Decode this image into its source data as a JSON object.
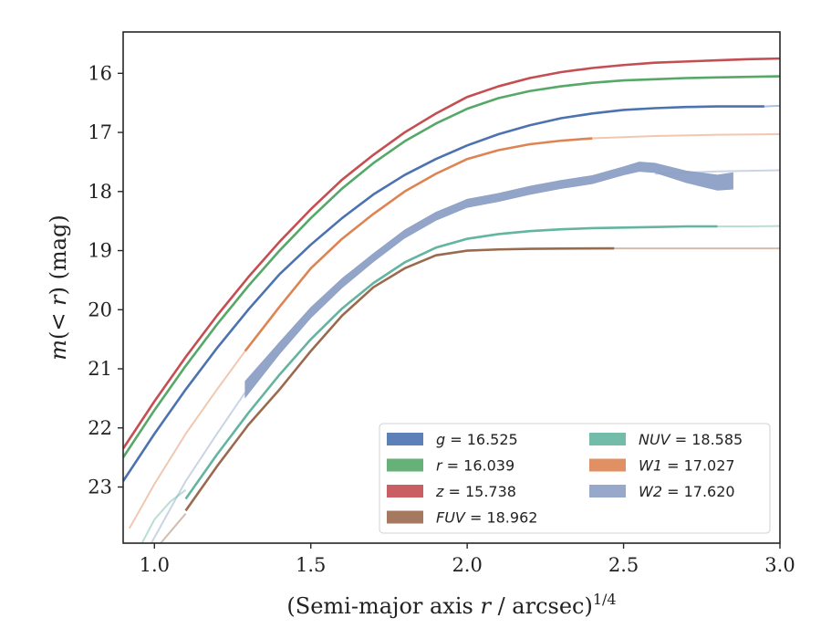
{
  "chart_data": {
    "type": "line",
    "xlabel": "(Semi-major axis r / arcsec)",
    "xlabel_italic_part": "r",
    "xlabel_exponent": "1/4",
    "ylabel": "m(<r) (mag)",
    "xlim": [
      0.9,
      3.0
    ],
    "ylim": [
      23.95,
      15.3
    ],
    "y_inverted": true,
    "grid": false,
    "legend_position": "lower-right",
    "x_ticks": [
      1.0,
      1.5,
      2.0,
      2.5,
      3.0
    ],
    "x_tick_labels": [
      "1.0",
      "1.5",
      "2.0",
      "2.5",
      "3.0"
    ],
    "y_ticks": [
      16,
      17,
      18,
      19,
      20,
      21,
      22,
      23
    ],
    "y_tick_labels": [
      "16",
      "17",
      "18",
      "19",
      "20",
      "21",
      "22",
      "23"
    ],
    "series": [
      {
        "name": "g = 16.525",
        "band": "g",
        "color": "#4c72b0",
        "style": "line",
        "x": [
          0.9,
          1.0,
          1.1,
          1.2,
          1.3,
          1.4,
          1.5,
          1.6,
          1.7,
          1.8,
          1.9,
          2.0,
          2.1,
          2.2,
          2.3,
          2.4,
          2.5,
          2.6,
          2.7,
          2.8,
          2.95
        ],
        "y": [
          22.9,
          22.1,
          21.35,
          20.65,
          20.0,
          19.4,
          18.9,
          18.45,
          18.05,
          17.72,
          17.45,
          17.22,
          17.03,
          16.88,
          16.76,
          16.68,
          16.62,
          16.59,
          16.57,
          16.56,
          16.56
        ]
      },
      {
        "name": "g-extension",
        "color": "#4c72b0",
        "style": "faint",
        "x": [
          2.95,
          3.0
        ],
        "y": [
          16.56,
          16.55
        ]
      },
      {
        "name": "r = 16.039",
        "band": "r",
        "color": "#55a868",
        "style": "line",
        "x": [
          0.9,
          1.0,
          1.1,
          1.2,
          1.3,
          1.4,
          1.5,
          1.6,
          1.7,
          1.8,
          1.9,
          2.0,
          2.1,
          2.2,
          2.3,
          2.4,
          2.5,
          2.6,
          2.7,
          2.8,
          2.9,
          3.0
        ],
        "y": [
          22.5,
          21.7,
          20.95,
          20.25,
          19.6,
          19.0,
          18.45,
          17.95,
          17.52,
          17.15,
          16.85,
          16.6,
          16.42,
          16.3,
          16.22,
          16.16,
          16.12,
          16.1,
          16.08,
          16.07,
          16.06,
          16.05
        ]
      },
      {
        "name": "z = 15.738",
        "band": "z",
        "color": "#c44e52",
        "style": "line",
        "x": [
          0.9,
          1.0,
          1.1,
          1.2,
          1.3,
          1.4,
          1.5,
          1.6,
          1.7,
          1.8,
          1.9,
          2.0,
          2.1,
          2.2,
          2.3,
          2.4,
          2.5,
          2.6,
          2.7,
          2.8,
          2.9,
          3.0
        ],
        "y": [
          22.35,
          21.55,
          20.8,
          20.1,
          19.45,
          18.85,
          18.3,
          17.8,
          17.38,
          17.0,
          16.68,
          16.4,
          16.22,
          16.08,
          15.98,
          15.91,
          15.86,
          15.82,
          15.8,
          15.78,
          15.76,
          15.75
        ]
      },
      {
        "name": "W1-faint-inner",
        "color": "#dd8452",
        "style": "faint",
        "x": [
          0.92,
          1.0,
          1.1,
          1.2,
          1.29
        ],
        "y": [
          23.7,
          22.95,
          22.1,
          21.35,
          20.7
        ]
      },
      {
        "name": "W1 = 17.027",
        "band": "W1",
        "color": "#dd8452",
        "style": "line",
        "x": [
          1.29,
          1.4,
          1.5,
          1.6,
          1.7,
          1.8,
          1.9,
          2.0,
          2.1,
          2.2,
          2.3,
          2.4
        ],
        "y": [
          20.7,
          19.95,
          19.3,
          18.8,
          18.38,
          18.0,
          17.7,
          17.45,
          17.3,
          17.2,
          17.14,
          17.1
        ]
      },
      {
        "name": "W1-faint-outer",
        "color": "#dd8452",
        "style": "faint",
        "x": [
          2.4,
          2.6,
          2.8,
          3.0
        ],
        "y": [
          17.1,
          17.06,
          17.04,
          17.03
        ]
      },
      {
        "name": "W2-faint-inner",
        "color": "#8c9fc4",
        "style": "faint",
        "x": [
          0.99,
          1.1,
          1.2,
          1.29
        ],
        "y": [
          23.95,
          22.9,
          22.1,
          21.4
        ]
      },
      {
        "name": "W2 = 17.620",
        "band": "W2",
        "color": "#8c9fc4",
        "style": "band",
        "x": [
          1.29,
          1.4,
          1.5,
          1.6,
          1.7,
          1.8,
          1.9,
          2.0,
          2.1,
          2.2,
          2.3,
          2.4,
          2.5,
          2.55,
          2.6,
          2.7,
          2.8,
          2.85
        ],
        "y": [
          21.35,
          20.65,
          20.05,
          19.55,
          19.12,
          18.72,
          18.42,
          18.2,
          18.1,
          17.98,
          17.88,
          17.8,
          17.65,
          17.58,
          17.6,
          17.75,
          17.85,
          17.82
        ],
        "halfwidth": [
          0.14,
          0.1,
          0.09,
          0.08,
          0.07,
          0.07,
          0.07,
          0.07,
          0.07,
          0.07,
          0.07,
          0.07,
          0.07,
          0.08,
          0.08,
          0.1,
          0.13,
          0.14
        ]
      },
      {
        "name": "W2-faint-outer",
        "color": "#8c9fc4",
        "style": "faint",
        "x": [
          2.6,
          2.8,
          3.0
        ],
        "y": [
          17.7,
          17.66,
          17.64
        ]
      },
      {
        "name": "NUV-faint-inner",
        "color": "#64b5a0",
        "style": "faint",
        "x": [
          0.96,
          1.0,
          1.05,
          1.1
        ],
        "y": [
          23.95,
          23.55,
          23.25,
          23.05
        ]
      },
      {
        "name": "NUV = 18.585",
        "band": "NUV",
        "color": "#64b5a0",
        "style": "line",
        "x": [
          1.1,
          1.2,
          1.3,
          1.4,
          1.5,
          1.6,
          1.7,
          1.8,
          1.9,
          2.0,
          2.1,
          2.2,
          2.3,
          2.4,
          2.5,
          2.6,
          2.7,
          2.8
        ],
        "y": [
          23.2,
          22.45,
          21.75,
          21.1,
          20.5,
          19.98,
          19.55,
          19.2,
          18.95,
          18.8,
          18.72,
          18.67,
          18.64,
          18.62,
          18.61,
          18.6,
          18.59,
          18.59
        ]
      },
      {
        "name": "NUV-faint-outer",
        "color": "#64b5a0",
        "style": "faint",
        "x": [
          2.8,
          2.9,
          3.0
        ],
        "y": [
          18.59,
          18.59,
          18.585
        ]
      },
      {
        "name": "FUV-faint-inner",
        "color": "#9b6a4e",
        "style": "faint",
        "x": [
          1.02,
          1.06,
          1.1
        ],
        "y": [
          23.95,
          23.7,
          23.45
        ]
      },
      {
        "name": "FUV = 18.962",
        "band": "FUV",
        "color": "#9b6a4e",
        "style": "line",
        "x": [
          1.1,
          1.2,
          1.3,
          1.4,
          1.5,
          1.6,
          1.7,
          1.8,
          1.9,
          2.0,
          2.1,
          2.2,
          2.3,
          2.47
        ],
        "y": [
          23.4,
          22.65,
          21.95,
          21.35,
          20.7,
          20.1,
          19.62,
          19.3,
          19.08,
          19.0,
          18.98,
          18.97,
          18.965,
          18.962
        ]
      },
      {
        "name": "FUV-faint-outer",
        "color": "#9b6a4e",
        "style": "faint",
        "x": [
          2.47,
          2.7,
          3.0
        ],
        "y": [
          18.962,
          18.962,
          18.962
        ]
      }
    ],
    "legend": [
      {
        "symbol": "g",
        "value": "16.525",
        "color": "#4c72b0"
      },
      {
        "symbol": "r",
        "value": "16.039",
        "color": "#55a868"
      },
      {
        "symbol": "z",
        "value": "15.738",
        "color": "#c44e52"
      },
      {
        "symbol": "FUV",
        "value": "18.962",
        "color": "#9b6a4e"
      },
      {
        "symbol": "NUV",
        "value": "18.585",
        "color": "#64b5a0"
      },
      {
        "symbol": "W1",
        "value": "17.027",
        "color": "#dd8452"
      },
      {
        "symbol": "W2",
        "value": "17.620",
        "color": "#8c9fc4"
      }
    ]
  }
}
